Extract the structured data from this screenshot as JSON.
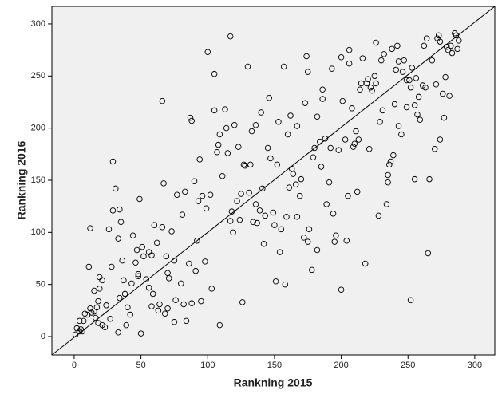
{
  "chart_data": {
    "type": "scatter",
    "x_label": "Rankning 2015",
    "y_label": "Rankning 2016",
    "xlim": [
      -16.7,
      315
    ],
    "ylim": [
      -17.6,
      316.8
    ],
    "xticks": [
      0,
      50,
      100,
      150,
      200,
      250,
      300
    ],
    "yticks": [
      0,
      50,
      100,
      150,
      200,
      250,
      300
    ],
    "color": "#000000",
    "background": "#f0f0f0",
    "x": [
      1,
      2,
      4,
      5,
      6,
      4,
      8,
      10,
      12,
      13,
      15,
      17,
      7,
      16,
      18,
      21,
      23,
      27,
      33,
      11,
      12,
      19,
      21,
      19,
      15,
      18,
      24,
      28,
      26,
      29,
      29,
      31,
      33,
      34,
      35,
      36,
      37,
      34,
      38,
      39,
      40,
      42,
      43,
      44,
      46,
      47,
      48,
      48,
      49,
      50,
      52,
      51,
      54,
      56,
      56,
      58,
      58,
      59,
      60,
      62,
      63,
      64,
      66,
      67,
      66,
      68,
      69,
      70,
      70,
      71,
      73,
      75,
      75,
      76,
      77,
      80,
      81,
      82,
      83,
      84,
      86,
      87,
      88,
      88,
      90,
      91,
      92,
      93,
      94,
      95,
      96,
      98,
      99,
      100,
      102,
      103,
      105,
      105,
      107,
      108,
      109,
      109,
      111,
      113,
      114,
      115,
      117,
      117,
      118,
      119,
      120,
      122,
      123,
      124,
      125,
      126,
      127,
      128,
      130,
      131,
      132,
      133,
      134,
      136,
      136,
      137,
      139,
      140,
      141,
      142,
      143,
      145,
      146,
      147,
      149,
      150,
      151,
      152,
      153,
      154,
      155,
      157,
      158,
      159,
      160,
      161,
      162,
      163,
      164,
      166,
      167,
      167,
      169,
      170,
      172,
      173,
      174,
      175,
      175,
      176,
      178,
      179,
      180,
      182,
      182,
      184,
      185,
      186,
      186,
      188,
      189,
      191,
      192,
      193,
      194,
      195,
      196,
      198,
      200,
      200,
      201,
      203,
      204,
      205,
      206,
      206,
      208,
      209,
      210,
      211,
      212,
      213,
      214,
      215,
      216,
      218,
      219,
      220,
      221,
      222,
      223,
      225,
      226,
      226,
      228,
      229,
      230,
      231,
      232,
      234,
      235,
      235,
      236,
      237,
      238,
      239,
      240,
      241,
      242,
      243,
      243,
      245,
      246,
      247,
      249,
      249,
      251,
      252,
      252,
      253,
      255,
      255,
      256,
      257,
      258,
      259,
      261,
      262,
      263,
      264,
      265,
      266,
      268,
      270,
      271,
      272,
      273,
      274,
      274,
      276,
      277,
      278,
      279,
      280,
      281,
      282,
      283,
      285,
      286,
      288,
      287
    ],
    "y": [
      2,
      8,
      5,
      7,
      5,
      15,
      22,
      21,
      27,
      23,
      24,
      28,
      15,
      18,
      13,
      11,
      9,
      17,
      4,
      67,
      104,
      57,
      54,
      46,
      44,
      34,
      30,
      67,
      103,
      121,
      168,
      142,
      94,
      122,
      110,
      73,
      54,
      37,
      41,
      11,
      28,
      21,
      51,
      97,
      71,
      83,
      60,
      58,
      132,
      3,
      77,
      86,
      55,
      81,
      47,
      78,
      29,
      41,
      107,
      90,
      25,
      31,
      226,
      147,
      105,
      22,
      77,
      27,
      61,
      56,
      101,
      14,
      73,
      35,
      136,
      51,
      117,
      31,
      139,
      15,
      70,
      210,
      207,
      32,
      149,
      63,
      92,
      130,
      170,
      34,
      135,
      72,
      123,
      273,
      136,
      46,
      217,
      252,
      177,
      184,
      194,
      11,
      154,
      218,
      200,
      176,
      288,
      111,
      120,
      100,
      203,
      130,
      182,
      112,
      137,
      33,
      165,
      164,
      259,
      138,
      165,
      197,
      110,
      203,
      127,
      109,
      121,
      215,
      142,
      89,
      116,
      181,
      229,
      171,
      119,
      107,
      53,
      165,
      206,
      81,
      103,
      259,
      50,
      115,
      194,
      143,
      212,
      161,
      156,
      146,
      202,
      115,
      135,
      151,
      95,
      224,
      269,
      254,
      91,
      103,
      64,
      172,
      181,
      83,
      211,
      187,
      163,
      237,
      228,
      190,
      127,
      148,
      181,
      257,
      118,
      91,
      97,
      179,
      45,
      268,
      226,
      189,
      92,
      135,
      262,
      275,
      219,
      182,
      185,
      197,
      139,
      189,
      237,
      243,
      267,
      70,
      243,
      247,
      180,
      239,
      236,
      250,
      282,
      243,
      116,
      206,
      265,
      217,
      271,
      127,
      148,
      155,
      165,
      168,
      276,
      174,
      223,
      256,
      279,
      202,
      264,
      194,
      254,
      265,
      246,
      220,
      246,
      35,
      239,
      258,
      222,
      151,
      248,
      213,
      230,
      208,
      241,
      279,
      239,
      286,
      80,
      151,
      265,
      180,
      242,
      286,
      289,
      283,
      189,
      233,
      210,
      249,
      278,
      275,
      231,
      279,
      272,
      291,
      289,
      284,
      276
    ]
  }
}
